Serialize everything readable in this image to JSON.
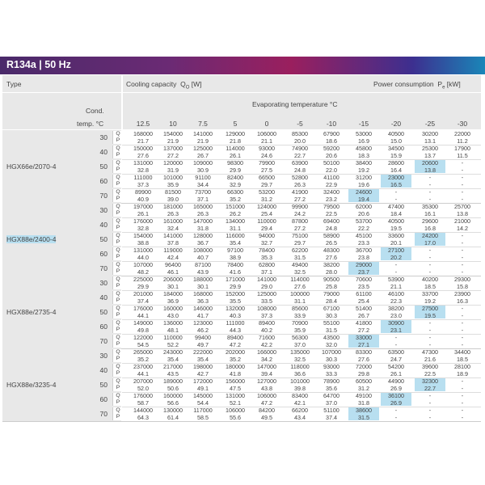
{
  "banner": {
    "title": "R134a | 50 Hz"
  },
  "header": {
    "type_label": "Type",
    "cooling_label": "Cooling capacity",
    "cooling_symbol": "Q",
    "cooling_sub": "O",
    "cooling_unit": "[W]",
    "power_label": "Power consumption",
    "power_symbol": "P",
    "power_sub": "e",
    "power_unit": "[kW]",
    "evap_label": "Evaporating temperature °C",
    "cond_label_1": "Cond.",
    "cond_label_2": "temp. °C"
  },
  "columns": [
    "12.5",
    "10",
    "7.5",
    "5",
    "0",
    "-5",
    "-10",
    "-15",
    "-20",
    "-25",
    "-30"
  ],
  "qp_labels": {
    "q": "Q",
    "p": "P"
  },
  "models": [
    {
      "name": "HGX66e/2070-4",
      "rows": [
        {
          "cond": "30",
          "q": [
            "168000",
            "154000",
            "141000",
            "129000",
            "106000",
            "85300",
            "67900",
            "53000",
            "40500",
            "30200",
            "22000"
          ],
          "p": [
            "21.7",
            "21.9",
            "21.9",
            "21.8",
            "21.1",
            "20.0",
            "18.6",
            "16.9",
            "15.0",
            "13.1",
            "11.2"
          ],
          "hl": -1
        },
        {
          "cond": "40",
          "q": [
            "150000",
            "137000",
            "125000",
            "114000",
            "93000",
            "74900",
            "59200",
            "45800",
            "34500",
            "25300",
            "17900"
          ],
          "p": [
            "27.6",
            "27.2",
            "26.7",
            "26.1",
            "24.6",
            "22.7",
            "20.6",
            "18.3",
            "15.9",
            "13.7",
            "11.5"
          ],
          "hl": -1
        },
        {
          "cond": "50",
          "q": [
            "131000",
            "120000",
            "109000",
            "98300",
            "79900",
            "63900",
            "50100",
            "38400",
            "28600",
            "20600",
            "-"
          ],
          "p": [
            "32.8",
            "31.9",
            "30.9",
            "29.9",
            "27.5",
            "24.8",
            "22.0",
            "19.2",
            "16.4",
            "13.8",
            "-"
          ],
          "hl": 9
        },
        {
          "cond": "60",
          "q": [
            "111000",
            "101000",
            "91100",
            "82400",
            "66500",
            "52800",
            "41100",
            "31200",
            "23000",
            "-",
            "-"
          ],
          "p": [
            "37.3",
            "35.9",
            "34.4",
            "32.9",
            "29.7",
            "26.3",
            "22.9",
            "19.6",
            "16.5",
            "-",
            "-"
          ],
          "hl": 8
        },
        {
          "cond": "70",
          "q": [
            "89900",
            "81500",
            "73700",
            "66300",
            "53200",
            "41900",
            "32400",
            "24600",
            "-",
            "-",
            "-"
          ],
          "p": [
            "40.9",
            "39.0",
            "37.1",
            "35.2",
            "31.2",
            "27.2",
            "23.2",
            "19.4",
            "-",
            "-",
            "-"
          ],
          "hl": 7
        }
      ]
    },
    {
      "name": "HGX88e/2400-4",
      "rows": [
        {
          "cond": "30",
          "q": [
            "197000",
            "181000",
            "165000",
            "151000",
            "124000",
            "99900",
            "79500",
            "62000",
            "47400",
            "35300",
            "25700"
          ],
          "p": [
            "26.1",
            "26.3",
            "26.3",
            "26.2",
            "25.4",
            "24.2",
            "22.5",
            "20.6",
            "18.4",
            "16.1",
            "13.8"
          ],
          "hl": -1
        },
        {
          "cond": "40",
          "q": [
            "176000",
            "161000",
            "147000",
            "134000",
            "110000",
            "87800",
            "69400",
            "53700",
            "40500",
            "29600",
            "21000"
          ],
          "p": [
            "32.8",
            "32.4",
            "31.8",
            "31.1",
            "29.4",
            "27.2",
            "24.8",
            "22.2",
            "19.5",
            "16.8",
            "14.2"
          ],
          "hl": -1
        },
        {
          "cond": "50",
          "q": [
            "154000",
            "141000",
            "128000",
            "116000",
            "94000",
            "75100",
            "58900",
            "45100",
            "33600",
            "24200",
            "-"
          ],
          "p": [
            "38.8",
            "37.8",
            "36.7",
            "35.4",
            "32.7",
            "29.7",
            "26.5",
            "23.3",
            "20.1",
            "17.0",
            "-"
          ],
          "hl": 9
        },
        {
          "cond": "60",
          "q": [
            "131000",
            "119000",
            "108000",
            "97100",
            "78400",
            "62200",
            "48300",
            "36700",
            "27100",
            "-",
            "-"
          ],
          "p": [
            "44.0",
            "42.4",
            "40.7",
            "38.9",
            "35.3",
            "31.5",
            "27.6",
            "23.8",
            "20.2",
            "-",
            "-"
          ],
          "hl": 8
        },
        {
          "cond": "70",
          "q": [
            "107000",
            "96400",
            "87100",
            "78400",
            "62800",
            "49400",
            "38200",
            "29000",
            "-",
            "-",
            "-"
          ],
          "p": [
            "48.2",
            "46.1",
            "43.9",
            "41.6",
            "37.1",
            "32.5",
            "28.0",
            "23.7",
            "-",
            "-",
            "-"
          ],
          "hl": 7
        }
      ]
    },
    {
      "name": "HGX88e/2735-4",
      "rows": [
        {
          "cond": "30",
          "q": [
            "225000",
            "206000",
            "188000",
            "171000",
            "141000",
            "114000",
            "90500",
            "70600",
            "53900",
            "40200",
            "29300"
          ],
          "p": [
            "29.9",
            "30.1",
            "30.1",
            "29.9",
            "29.0",
            "27.6",
            "25.8",
            "23.5",
            "21.1",
            "18.5",
            "15.8"
          ],
          "hl": -1
        },
        {
          "cond": "40",
          "q": [
            "201000",
            "184000",
            "168000",
            "152000",
            "125000",
            "100000",
            "79000",
            "61100",
            "46100",
            "33700",
            "23900"
          ],
          "p": [
            "37.4",
            "36.9",
            "36.3",
            "35.5",
            "33.5",
            "31.1",
            "28.4",
            "25.4",
            "22.3",
            "19.2",
            "16.3"
          ],
          "hl": -1
        },
        {
          "cond": "50",
          "q": [
            "176000",
            "160000",
            "146000",
            "132000",
            "108000",
            "85600",
            "67100",
            "51400",
            "38200",
            "27500",
            "-"
          ],
          "p": [
            "44.1",
            "43.0",
            "41.7",
            "40.3",
            "37.3",
            "33.9",
            "30.3",
            "26.7",
            "23.0",
            "19.5",
            "-"
          ],
          "hl": 9
        },
        {
          "cond": "60",
          "q": [
            "149000",
            "136000",
            "123000",
            "111000",
            "89400",
            "70900",
            "55100",
            "41800",
            "30900",
            "-",
            "-"
          ],
          "p": [
            "49.8",
            "48.1",
            "46.2",
            "44.3",
            "40.2",
            "35.9",
            "31.5",
            "27.2",
            "23.1",
            "-",
            "-"
          ],
          "hl": 8
        },
        {
          "cond": "70",
          "q": [
            "122000",
            "110000",
            "99400",
            "89400",
            "71600",
            "56300",
            "43500",
            "33000",
            "-",
            "-",
            "-"
          ],
          "p": [
            "54.5",
            "52.2",
            "49.7",
            "47.2",
            "42.2",
            "37.0",
            "32.0",
            "27.1",
            "-",
            "-",
            "-"
          ],
          "hl": 7
        }
      ]
    },
    {
      "name": "HGX88e/3235-4",
      "rows": [
        {
          "cond": "30",
          "q": [
            "265000",
            "243000",
            "222000",
            "202000",
            "166000",
            "135000",
            "107000",
            "83300",
            "63500",
            "47300",
            "34400"
          ],
          "p": [
            "35.2",
            "35.4",
            "35.4",
            "35.2",
            "34.2",
            "32.5",
            "30.3",
            "27.6",
            "24.7",
            "21.6",
            "18.5"
          ],
          "hl": -1
        },
        {
          "cond": "40",
          "q": [
            "237000",
            "217000",
            "198000",
            "180000",
            "147000",
            "118000",
            "93000",
            "72000",
            "54200",
            "39600",
            "28100"
          ],
          "p": [
            "44.1",
            "43.5",
            "42.7",
            "41.8",
            "39.4",
            "36.6",
            "33.3",
            "29.8",
            "26.1",
            "22.5",
            "18.9"
          ],
          "hl": -1
        },
        {
          "cond": "50",
          "q": [
            "207000",
            "189000",
            "172000",
            "156000",
            "127000",
            "101000",
            "78900",
            "60500",
            "44900",
            "32300",
            "-"
          ],
          "p": [
            "52.0",
            "50.6",
            "49.1",
            "47.5",
            "43.8",
            "39.8",
            "35.6",
            "31.2",
            "26.9",
            "22.7",
            "-"
          ],
          "hl": 9
        },
        {
          "cond": "60",
          "q": [
            "176000",
            "160000",
            "145000",
            "131000",
            "106000",
            "83400",
            "64700",
            "49100",
            "36100",
            "-",
            "-"
          ],
          "p": [
            "58.7",
            "56.6",
            "54.4",
            "52.1",
            "47.2",
            "42.1",
            "37.0",
            "31.8",
            "26.9",
            "-",
            "-"
          ],
          "hl": 8
        },
        {
          "cond": "70",
          "q": [
            "144000",
            "130000",
            "117000",
            "106000",
            "84200",
            "66200",
            "51100",
            "38600",
            "-",
            "-",
            "-"
          ],
          "p": [
            "64.3",
            "61.4",
            "58.5",
            "55.6",
            "49.5",
            "43.4",
            "37.4",
            "31.5",
            "-",
            "-",
            "-"
          ],
          "hl": 7
        }
      ]
    }
  ],
  "highlight_color": "#b8dff0"
}
